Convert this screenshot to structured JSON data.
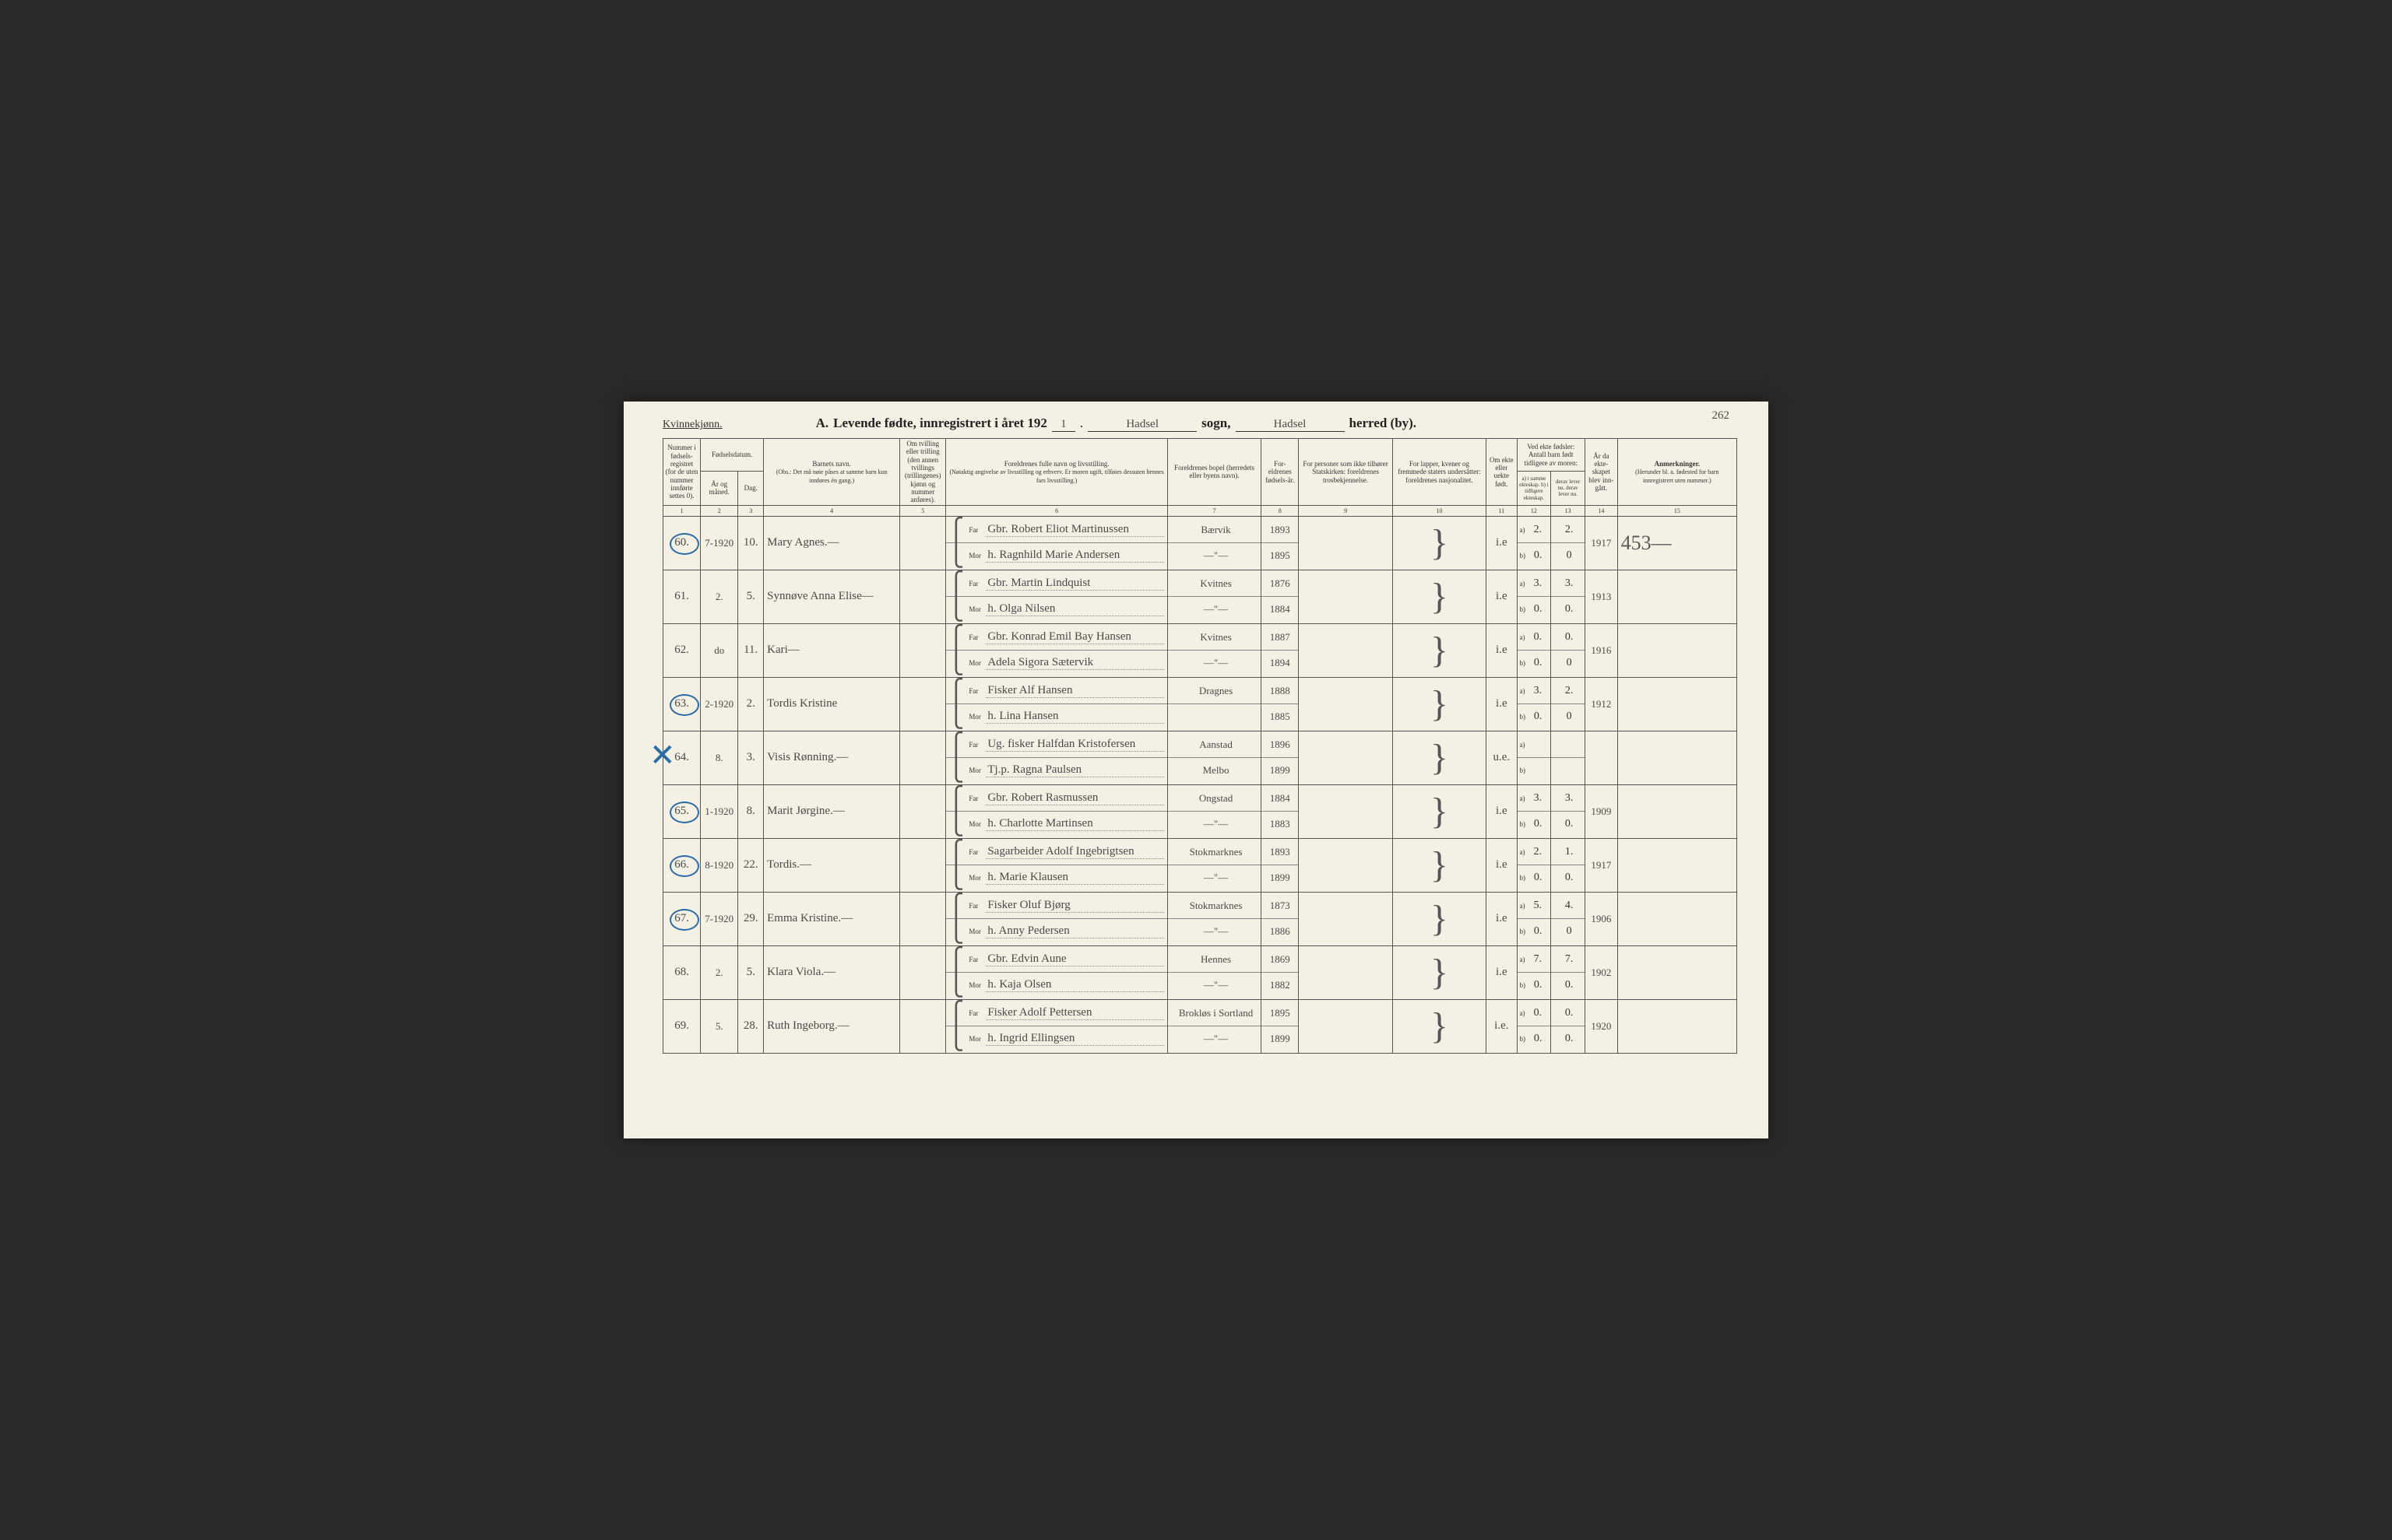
{
  "pageNumber": "262",
  "genderLabel": "Kvinnekjønn.",
  "title": {
    "prefix": "A.",
    "main": "Levende fødte, innregistrert i året 192",
    "yearSuffix": "1",
    "sogn": "Hadsel",
    "sognLabel": "sogn,",
    "herred": "Hadsel",
    "herredLabel": "herred (by)."
  },
  "columns": {
    "c1": "Nummer i fødsels-registret (for de uten nummer innførte settes 0).",
    "c2_3": "Fødselsdatum.",
    "c2": "År og måned.",
    "c3": "Dag.",
    "c4": "Barnets navn.",
    "c4sub": "(Obs.: Det må nøie påses at samme barn kun innføres én gang.)",
    "c5": "Om tvilling eller trilling (den annen tvillings (trillingenes) kjønn og nummer anføres).",
    "c6": "Foreldrenes fulle navn og livsstilling.",
    "c6sub": "(Nøiaktig angivelse av livsstilling og erhverv. Er moren ugift, tilføies dessuten hennes fars livsstilling.)",
    "c7": "Foreldrenes bopel (herredets eller byens navn).",
    "c8": "For-eldrenes fødsels-år.",
    "c9": "For personer som ikke tilhører Statskirken: foreldrenes trosbekjennelse.",
    "c10": "For lapper, kvener og fremmede staters undersåtter: foreldrenes nasjonalitet.",
    "c11": "Om ekte eller uekte født.",
    "c12_13": "Ved ekte fødsler: Antall barn født tidligere av moren:",
    "c12": "a) i samme ekteskap.   b) i tidligere ekteskap.",
    "c13": "derav lever nu.  derav lever nu.",
    "c14": "År da ekte-skapet blev inn-gått.",
    "c15": "Anmerkninger.",
    "c15sub": "(Herunder bl. a. fødested for barn innregistrert uten nummer.)"
  },
  "colNums": [
    "1",
    "2",
    "3",
    "4",
    "5",
    "6",
    "7",
    "8",
    "9",
    "10",
    "11",
    "12",
    "13",
    "14",
    "15"
  ],
  "farLabel": "Far",
  "morLabel": "Mor",
  "rows": [
    {
      "num": "60.",
      "circled": true,
      "ym": "7-1920",
      "day": "10.",
      "child": "Mary Agnes.—",
      "far": "Gbr. Robert Eliot Martinussen",
      "mor": "h. Ragnhild Marie Andersen",
      "bopelF": "Bærvik",
      "bopelM": "—\"—",
      "yrF": "1893",
      "yrM": "1895",
      "ekte": "i.e",
      "a1": "2.",
      "a2": "2.",
      "b1": "0.",
      "b2": "0",
      "yr": "1917",
      "remark": "453—"
    },
    {
      "num": "61.",
      "ym": "2.",
      "day": "5.",
      "child": "Synnøve Anna Elise—",
      "far": "Gbr. Martin Lindquist",
      "mor": "h. Olga Nilsen",
      "bopelF": "Kvitnes",
      "bopelM": "—\"—",
      "yrF": "1876",
      "yrM": "1884",
      "ekte": "i.e",
      "a1": "3.",
      "a2": "3.",
      "b1": "0.",
      "b2": "0.",
      "yr": "1913"
    },
    {
      "num": "62.",
      "ym": "do",
      "day": "11.",
      "child": "Kari—",
      "far": "Gbr. Konrad Emil Bay Hansen",
      "mor": "Adela Sigora Sætervik",
      "bopelF": "Kvitnes",
      "bopelM": "—\"—",
      "yrF": "1887",
      "yrM": "1894",
      "ekte": "i.e",
      "a1": "0.",
      "a2": "0.",
      "b1": "0.",
      "b2": "0",
      "yr": "1916"
    },
    {
      "num": "63.",
      "circled": true,
      "ym": "2-1920",
      "day": "2.",
      "child": "Tordis Kristine",
      "far": "Fisker Alf Hansen",
      "mor": "h. Lina Hansen",
      "bopelF": "Dragnes",
      "bopelM": "",
      "yrF": "1888",
      "yrM": "1885",
      "ekte": "i.e",
      "a1": "3.",
      "a2": "2.",
      "b1": "0.",
      "b2": "0",
      "yr": "1912"
    },
    {
      "num": "64.",
      "crossed": true,
      "ym": "8.",
      "day": "3.",
      "child": "Visis Rønning.—",
      "far": "Ug. fisker Halfdan Kristofersen",
      "mor": "Tj.p. Ragna Paulsen",
      "bopelF": "Aanstad",
      "bopelM": "Melbo",
      "yrF": "1896",
      "yrM": "1899",
      "ekte": "u.e.",
      "a1": "",
      "a2": "",
      "b1": "",
      "b2": "",
      "yr": ""
    },
    {
      "num": "65.",
      "circled": true,
      "ym": "1-1920",
      "day": "8.",
      "child": "Marit Jørgine.—",
      "far": "Gbr. Robert Rasmussen",
      "mor": "h. Charlotte Martinsen",
      "bopelF": "Ongstad",
      "bopelM": "—\"—",
      "yrF": "1884",
      "yrM": "1883",
      "ekte": "i.e",
      "a1": "3.",
      "a2": "3.",
      "b1": "0.",
      "b2": "0.",
      "yr": "1909"
    },
    {
      "num": "66.",
      "circled": true,
      "ym": "8-1920",
      "day": "22.",
      "child": "Tordis.—",
      "far": "Sagarbeider Adolf Ingebrigtsen",
      "mor": "h. Marie Klausen",
      "bopelF": "Stokmarknes",
      "bopelM": "—\"—",
      "yrF": "1893",
      "yrM": "1899",
      "ekte": "i.e",
      "a1": "2.",
      "a2": "1.",
      "b1": "0.",
      "b2": "0.",
      "yr": "1917"
    },
    {
      "num": "67.",
      "circled": true,
      "ym": "7-1920",
      "day": "29.",
      "child": "Emma Kristine.—",
      "far": "Fisker Oluf Bjørg",
      "mor": "h. Anny Pedersen",
      "bopelF": "Stokmarknes",
      "bopelM": "—\"—",
      "yrF": "1873",
      "yrM": "1886",
      "ekte": "i.e",
      "a1": "5.",
      "a2": "4.",
      "b1": "0.",
      "b2": "0",
      "yr": "1906"
    },
    {
      "num": "68.",
      "ym": "2.",
      "day": "5.",
      "child": "Klara Viola.—",
      "far": "Gbr. Edvin Aune",
      "mor": "h. Kaja Olsen",
      "bopelF": "Hennes",
      "bopelM": "—\"—",
      "yrF": "1869",
      "yrM": "1882",
      "ekte": "i.e",
      "a1": "7.",
      "a2": "7.",
      "b1": "0.",
      "b2": "0.",
      "yr": "1902"
    },
    {
      "num": "69.",
      "ym": "5.",
      "day": "28.",
      "child": "Ruth Ingeborg.—",
      "far": "Fisker Adolf Pettersen",
      "mor": "h. Ingrid Ellingsen",
      "bopelF": "Brokløs i Sortland",
      "bopelM": "—\"—",
      "yrF": "1895",
      "yrM": "1899",
      "ekte": "i.e.",
      "a1": "0.",
      "a2": "0.",
      "b1": "0.",
      "b2": "0.",
      "yr": "1920"
    }
  ]
}
